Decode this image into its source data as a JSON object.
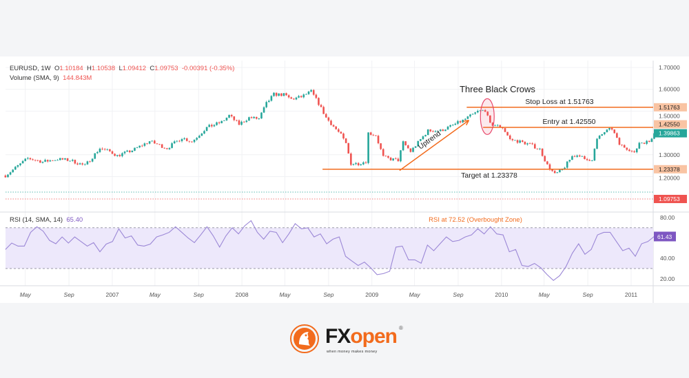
{
  "legend": {
    "symbol": "EURUSD, 1W",
    "open_label": "O",
    "open": "1.10184",
    "high_label": "H",
    "high": "1.10538",
    "low_label": "L",
    "low": "1.09412",
    "close_label": "C",
    "close": "1.09753",
    "change": "-0.00391 (-0.35%)",
    "volume_label": "Volume (SMA, 9)",
    "volume_value": "144.843M",
    "rsi_label": "RSI (14, SMA, 14)",
    "rsi_value": "65.40"
  },
  "logo": {
    "brand_a": "FX",
    "brand_b": "open",
    "reg": "®",
    "tagline": "when money makes money"
  },
  "chart_data": [
    {
      "type": "candlestick",
      "title": "EURUSD, 1W",
      "ylim": [
        1.06,
        1.72
      ],
      "y_ticks": [
        "1.70000",
        "1.60000",
        "1.50000",
        "1.30000",
        "1.20000"
      ],
      "x_ticks": [
        {
          "label": "May",
          "date": "2006-05-01"
        },
        {
          "label": "Sep",
          "date": "2006-09-01"
        },
        {
          "label": "2007",
          "date": "2007-01-01"
        },
        {
          "label": "May",
          "date": "2007-05-01"
        },
        {
          "label": "Sep",
          "date": "2007-09-01"
        },
        {
          "label": "2008",
          "date": "2008-01-01"
        },
        {
          "label": "May",
          "date": "2008-05-01"
        },
        {
          "label": "Sep",
          "date": "2008-09-01"
        },
        {
          "label": "2009",
          "date": "2009-01-01"
        },
        {
          "label": "May",
          "date": "2009-05-01"
        },
        {
          "label": "Sep",
          "date": "2009-09-01"
        },
        {
          "label": "2010",
          "date": "2010-01-01"
        },
        {
          "label": "May",
          "date": "2010-05-01"
        },
        {
          "label": "Sep",
          "date": "2010-09-01"
        },
        {
          "label": "2011",
          "date": "2011-01-01"
        }
      ],
      "closes": [
        [
          "2006-03-06",
          1.205
        ],
        [
          "2006-05-08",
          1.284
        ],
        [
          "2006-06-19",
          1.268
        ],
        [
          "2006-07-31",
          1.28
        ],
        [
          "2006-09-04",
          1.275
        ],
        [
          "2006-10-16",
          1.25
        ],
        [
          "2006-11-27",
          1.33
        ],
        [
          "2006-12-25",
          1.315
        ],
        [
          "2007-01-15",
          1.296
        ],
        [
          "2007-02-26",
          1.32
        ],
        [
          "2007-04-16",
          1.362
        ],
        [
          "2007-06-04",
          1.33
        ],
        [
          "2007-07-16",
          1.378
        ],
        [
          "2007-08-13",
          1.36
        ],
        [
          "2007-09-24",
          1.425
        ],
        [
          "2007-11-05",
          1.45
        ],
        [
          "2007-11-26",
          1.48
        ],
        [
          "2007-12-24",
          1.44
        ],
        [
          "2008-01-21",
          1.47
        ],
        [
          "2008-02-18",
          1.465
        ],
        [
          "2008-03-10",
          1.535
        ],
        [
          "2008-03-31",
          1.577
        ],
        [
          "2008-04-28",
          1.575
        ],
        [
          "2008-05-19",
          1.555
        ],
        [
          "2008-06-16",
          1.565
        ],
        [
          "2008-07-14",
          1.59
        ],
        [
          "2008-08-04",
          1.535
        ],
        [
          "2008-08-25",
          1.47
        ],
        [
          "2008-09-15",
          1.43
        ],
        [
          "2008-10-06",
          1.39
        ],
        [
          "2008-10-20",
          1.35
        ],
        [
          "2008-11-03",
          1.26
        ],
        [
          "2008-11-24",
          1.26
        ],
        [
          "2008-12-15",
          1.27
        ],
        [
          "2008-12-22",
          1.4
        ],
        [
          "2009-01-12",
          1.39
        ],
        [
          "2009-02-02",
          1.29
        ],
        [
          "2009-02-23",
          1.28
        ],
        [
          "2009-03-16",
          1.275
        ],
        [
          "2009-03-30",
          1.356
        ],
        [
          "2009-04-20",
          1.315
        ],
        [
          "2009-05-18",
          1.37
        ],
        [
          "2009-06-08",
          1.41
        ],
        [
          "2009-07-13",
          1.41
        ],
        [
          "2009-08-10",
          1.43
        ],
        [
          "2009-09-14",
          1.457
        ],
        [
          "2009-10-26",
          1.498
        ],
        [
          "2009-11-16",
          1.505
        ],
        [
          "2009-11-30",
          1.44
        ],
        [
          "2009-12-14",
          1.435
        ],
        [
          "2010-01-04",
          1.425
        ],
        [
          "2010-01-25",
          1.37
        ],
        [
          "2010-02-22",
          1.36
        ],
        [
          "2010-03-22",
          1.347
        ],
        [
          "2010-04-19",
          1.325
        ],
        [
          "2010-05-10",
          1.252
        ],
        [
          "2010-05-31",
          1.21
        ],
        [
          "2010-06-21",
          1.23
        ],
        [
          "2010-07-19",
          1.293
        ],
        [
          "2010-08-09",
          1.3
        ],
        [
          "2010-08-23",
          1.275
        ],
        [
          "2010-09-13",
          1.28
        ],
        [
          "2010-09-27",
          1.37
        ],
        [
          "2010-10-18",
          1.405
        ],
        [
          "2010-11-08",
          1.42
        ],
        [
          "2010-11-29",
          1.347
        ],
        [
          "2010-12-27",
          1.325
        ],
        [
          "2011-01-10",
          1.305
        ],
        [
          "2011-01-24",
          1.356
        ],
        [
          "2011-02-21",
          1.36
        ],
        [
          "2011-03-07",
          1.39863
        ]
      ],
      "up_color": "#26a69a",
      "down_color": "#ef5350",
      "dotted_levels": [
        {
          "value": 1.129,
          "color": "#26a69a"
        },
        {
          "value": 1.09753,
          "color": "#ef5350"
        }
      ],
      "price_labels": [
        {
          "value": 1.51763,
          "text": "1.51763",
          "bg": "#f9c4a3",
          "fg": "#222"
        },
        {
          "value": 1.4255,
          "text": "1.42550",
          "bg": "#f9c4a3",
          "fg": "#222"
        },
        {
          "value": 1.39863,
          "text": "1.39863",
          "bg": "#26a69a",
          "fg": "#fff"
        },
        {
          "value": 1.23378,
          "text": "1.23378",
          "bg": "#f9c4a3",
          "fg": "#222"
        },
        {
          "value": 1.09753,
          "text": "1.09753",
          "bg": "#ef5350",
          "fg": "#fff"
        }
      ],
      "annotations": {
        "color": "#f26b1d",
        "pattern_title": "Three Black Crows",
        "stop_loss": {
          "value": 1.51763,
          "from": "2009-09-25",
          "text": "Stop Loss at 1.51763"
        },
        "entry": {
          "value": 1.4255,
          "from": "2009-11-10",
          "text": "Entry at 1.42550"
        },
        "target": {
          "value": 1.23378,
          "from": "2008-08-15",
          "text": "Target at 1.23378"
        },
        "uptrend": {
          "text": "Uptrend",
          "from": [
            "2009-03-20",
            1.228
          ],
          "to": [
            "2009-10-01",
            1.458
          ]
        },
        "pattern_ellipse": {
          "date": "2009-11-22",
          "value": 1.475,
          "ellipse_color": "#e8476a"
        }
      }
    },
    {
      "type": "line",
      "title": "RSI (14, SMA, 14)",
      "ylim": [
        10,
        85
      ],
      "y_ticks": [
        "80.00",
        "40.00",
        "20.00"
      ],
      "bands": [
        30,
        70
      ],
      "line_color": "#9b87d6",
      "band_fill": "#ede8fb",
      "start": "2006-03-06",
      "end": "2011-03-07",
      "values": [
        48.7,
        55,
        52,
        52,
        65.5,
        71,
        66.6,
        57.6,
        54.3,
        61,
        55,
        61,
        56.5,
        52,
        55.4,
        46.4,
        54,
        56.5,
        69,
        60,
        62,
        53,
        52,
        54,
        61,
        63,
        65.5,
        71,
        65.5,
        60,
        55.4,
        63,
        71,
        62,
        51,
        62,
        70,
        64,
        72,
        77,
        65.5,
        58.8,
        66.6,
        65.5,
        55.4,
        64,
        74,
        69,
        70,
        61,
        64,
        54.3,
        58.8,
        61,
        42,
        37.4,
        33,
        36.3,
        30.7,
        24,
        25,
        27.3,
        51,
        52,
        38.5,
        38.5,
        35.2,
        53,
        47.5,
        54.3,
        61,
        56.5,
        57.6,
        61,
        63,
        69,
        64,
        71,
        64,
        63,
        46.4,
        48.7,
        33,
        32,
        35,
        30.7,
        24,
        18.3,
        23,
        32,
        45,
        54.3,
        44,
        48.7,
        63,
        65.5,
        65.5,
        56.5,
        47.5,
        50,
        42,
        54.3,
        56.5,
        61.43
      ],
      "last_label": {
        "text": "61.43",
        "bg": "#7e57c2",
        "fg": "#fff"
      },
      "annotation": {
        "text": "RSI at 72.52 (Overbought Zone)",
        "color": "#f26b1d"
      }
    }
  ]
}
